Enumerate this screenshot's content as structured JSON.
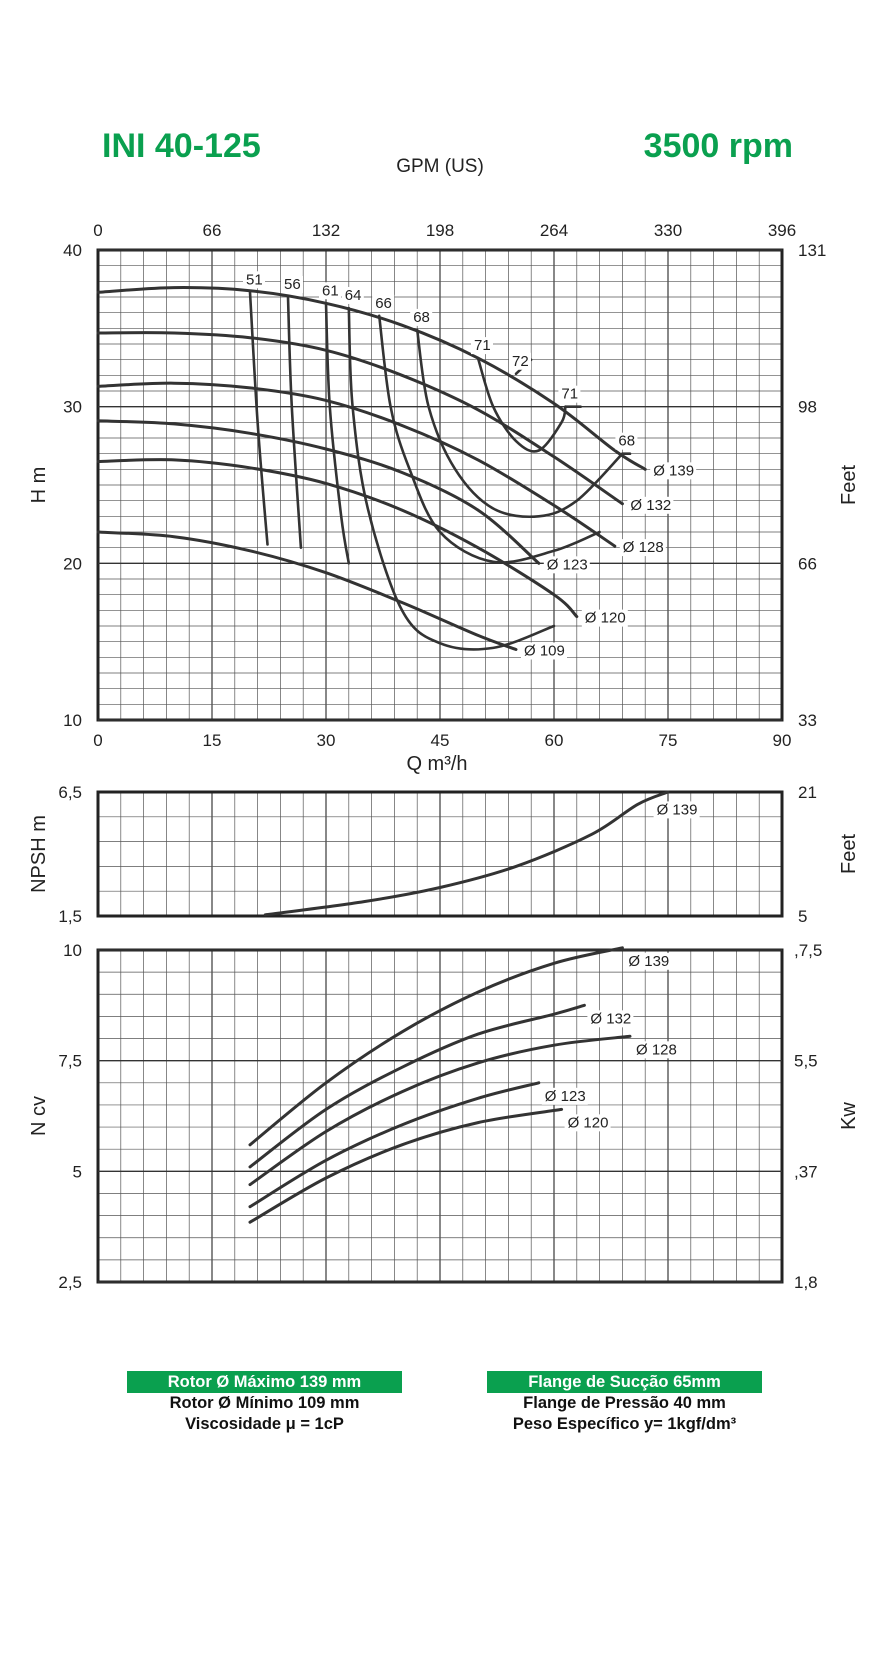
{
  "header": {
    "model": "INI 40-125",
    "speed": "3500 rpm",
    "top_axis_label": "GPM (US)"
  },
  "chart_data": [
    {
      "name": "head",
      "type": "line",
      "xlabel": "Q m³/h",
      "ylabel": "H m",
      "y2label": "Feet",
      "x2label": "GPM (US)",
      "xlim": [
        0,
        90
      ],
      "ylim": [
        10,
        40
      ],
      "grid": true,
      "x_ticks": [
        "0",
        "15",
        "30",
        "45",
        "60",
        "75",
        "90"
      ],
      "x_ticks_values": [
        0,
        15,
        30,
        45,
        60,
        75,
        90
      ],
      "y_ticks": [
        "10",
        "20",
        "30",
        "40"
      ],
      "y_ticks_values": [
        10,
        20,
        30,
        40
      ],
      "x2_ticks": [
        "0",
        "66",
        "132",
        "198",
        "264",
        "330",
        "396"
      ],
      "y2_ticks": [
        "33",
        "66",
        "98",
        "131"
      ],
      "y2_ticks_values": [
        10,
        20,
        30,
        40
      ],
      "series": [
        {
          "name": "Ø 139",
          "label": "Ø 139",
          "points": [
            [
              0,
              37.3
            ],
            [
              10,
              37.6
            ],
            [
              20,
              37.4
            ],
            [
              30,
              36.6
            ],
            [
              40,
              35.2
            ],
            [
              50,
              33.1
            ],
            [
              60,
              30.2
            ],
            [
              68,
              27.2
            ],
            [
              72,
              26.0
            ]
          ]
        },
        {
          "name": "Ø 132",
          "label": "Ø 132",
          "points": [
            [
              0,
              34.7
            ],
            [
              10,
              34.7
            ],
            [
              20,
              34.4
            ],
            [
              30,
              33.6
            ],
            [
              40,
              32.0
            ],
            [
              50,
              29.8
            ],
            [
              60,
              26.8
            ],
            [
              69,
              23.8
            ]
          ]
        },
        {
          "name": "Ø 128",
          "label": "Ø 128",
          "points": [
            [
              0,
              31.3
            ],
            [
              10,
              31.5
            ],
            [
              20,
              31.2
            ],
            [
              30,
              30.4
            ],
            [
              40,
              28.8
            ],
            [
              50,
              26.6
            ],
            [
              60,
              23.7
            ],
            [
              68,
              21.1
            ]
          ]
        },
        {
          "name": "Ø 123",
          "label": "Ø 123",
          "points": [
            [
              0,
              29.1
            ],
            [
              10,
              28.9
            ],
            [
              20,
              28.3
            ],
            [
              30,
              27.3
            ],
            [
              40,
              25.8
            ],
            [
              50,
              23.4
            ],
            [
              58,
              20.0
            ]
          ]
        },
        {
          "name": "Ø 120",
          "label": "Ø 120",
          "points": [
            [
              0,
              26.5
            ],
            [
              10,
              26.6
            ],
            [
              20,
              26.1
            ],
            [
              30,
              25.1
            ],
            [
              40,
              23.4
            ],
            [
              50,
              21.0
            ],
            [
              60,
              18.0
            ],
            [
              63,
              16.6
            ]
          ]
        },
        {
          "name": "Ø 109",
          "label": "Ø 109",
          "points": [
            [
              0,
              22.0
            ],
            [
              10,
              21.7
            ],
            [
              20,
              20.8
            ],
            [
              30,
              19.4
            ],
            [
              40,
              17.5
            ],
            [
              50,
              15.4
            ],
            [
              55,
              14.5
            ]
          ]
        }
      ],
      "efficiency_contours": [
        {
          "label": "51",
          "points": [
            [
              20,
              37.3
            ],
            [
              21,
              29.0
            ],
            [
              22.3,
              21.2
            ]
          ]
        },
        {
          "label": "56",
          "points": [
            [
              25,
              37.0
            ],
            [
              25.5,
              30.0
            ],
            [
              26.7,
              21.0
            ]
          ]
        },
        {
          "label": "61",
          "points": [
            [
              30,
              36.6
            ],
            [
              30.5,
              30.0
            ],
            [
              32.0,
              23.0
            ],
            [
              33.0,
              20.0
            ]
          ]
        },
        {
          "label": "64",
          "points": [
            [
              33,
              36.3
            ],
            [
              33.5,
              30.0
            ],
            [
              35.5,
              23.5
            ],
            [
              40,
              17.0
            ],
            [
              45,
              14.9
            ],
            [
              52,
              14.6
            ],
            [
              60,
              16.0
            ]
          ]
        },
        {
          "label": "66",
          "points": [
            [
              37,
              35.8
            ],
            [
              38.5,
              30.0
            ],
            [
              41,
              26.0
            ],
            [
              45,
              22.0
            ],
            [
              52,
              20.1
            ],
            [
              60,
              20.8
            ],
            [
              66,
              22.0
            ]
          ]
        },
        {
          "label": "68",
          "points": [
            [
              42,
              34.9
            ],
            [
              43.5,
              30.0
            ],
            [
              47,
              26.0
            ],
            [
              52,
              23.5
            ],
            [
              58,
              23.0
            ],
            [
              63,
              24.0
            ],
            [
              69,
              27.0
            ]
          ]
        },
        {
          "label": "71",
          "points": [
            [
              50,
              33.1
            ],
            [
              52,
              30.0
            ],
            [
              55,
              27.8
            ],
            [
              58,
              27.2
            ],
            [
              61,
              29.0
            ],
            [
              61.5,
              30.0
            ]
          ]
        },
        {
          "label": "72",
          "points": [
            [
              55,
              32.1
            ],
            [
              57,
              33.0
            ]
          ]
        },
        {
          "label": "71",
          "points": [
            [
              61.5,
              30.0
            ],
            [
              63.5,
              30.0
            ]
          ]
        },
        {
          "label": "68",
          "points": [
            [
              69,
              27.0
            ],
            [
              70,
              27.0
            ]
          ]
        }
      ],
      "contour_labels": [
        "51",
        "56",
        "61",
        "64",
        "66",
        "68",
        "71",
        "72",
        "71",
        "68"
      ]
    },
    {
      "name": "npsh",
      "type": "line",
      "ylabel": "NPSH m",
      "y2label": "Feet",
      "xlim": [
        0,
        90
      ],
      "ylim": [
        1.5,
        6.5
      ],
      "y_ticks": [
        "1,5",
        "6,5"
      ],
      "y2_ticks": [
        "5",
        "21"
      ],
      "grid": true,
      "series": [
        {
          "name": "Ø 139",
          "label": "Ø 139",
          "points": [
            [
              22,
              1.55
            ],
            [
              35,
              2.08
            ],
            [
              45,
              2.65
            ],
            [
              55,
              3.5
            ],
            [
              65,
              4.8
            ],
            [
              71,
              6.0
            ],
            [
              75,
              6.5
            ]
          ]
        }
      ]
    },
    {
      "name": "power",
      "type": "line",
      "ylabel": "N cv",
      "y2label": "Kw",
      "xlim": [
        0,
        90
      ],
      "ylim": [
        2.5,
        10
      ],
      "y_ticks": [
        "2,5",
        "5",
        "7,5",
        "10"
      ],
      "y2_ticks": [
        "1,8",
        ",37",
        "5,5",
        ",7,5"
      ],
      "grid": true,
      "series": [
        {
          "name": "Ø 139",
          "label": "Ø 139",
          "points": [
            [
              20,
              5.6
            ],
            [
              30,
              7.0
            ],
            [
              40,
              8.15
            ],
            [
              50,
              9.05
            ],
            [
              60,
              9.7
            ],
            [
              69,
              10.05
            ]
          ]
        },
        {
          "name": "Ø 132",
          "label": "Ø 132",
          "points": [
            [
              20,
              5.1
            ],
            [
              30,
              6.4
            ],
            [
              40,
              7.35
            ],
            [
              50,
              8.1
            ],
            [
              60,
              8.55
            ],
            [
              64,
              8.75
            ]
          ]
        },
        {
          "name": "Ø 128",
          "label": "Ø 128",
          "points": [
            [
              20,
              4.7
            ],
            [
              30,
              5.9
            ],
            [
              40,
              6.8
            ],
            [
              50,
              7.45
            ],
            [
              60,
              7.85
            ],
            [
              70,
              8.05
            ]
          ]
        },
        {
          "name": "Ø 123",
          "label": "Ø 123",
          "points": [
            [
              20,
              4.2
            ],
            [
              30,
              5.25
            ],
            [
              40,
              6.05
            ],
            [
              50,
              6.65
            ],
            [
              58,
              7.0
            ]
          ]
        },
        {
          "name": "Ø 120",
          "label": "Ø 120",
          "points": [
            [
              20,
              3.85
            ],
            [
              30,
              4.85
            ],
            [
              40,
              5.6
            ],
            [
              50,
              6.1
            ],
            [
              61,
              6.4
            ]
          ]
        }
      ]
    }
  ],
  "footer": {
    "left": {
      "line1": "Rotor Ø Máximo 139 mm",
      "line2": "Rotor Ø Mínimo 109 mm",
      "line3": "Viscosidade μ = 1cP"
    },
    "right": {
      "line1": "Flange de Sucção 65mm",
      "line2": "Flange de Pressão 40 mm",
      "line3": "Peso Específico y= 1kgf/dm³"
    }
  }
}
